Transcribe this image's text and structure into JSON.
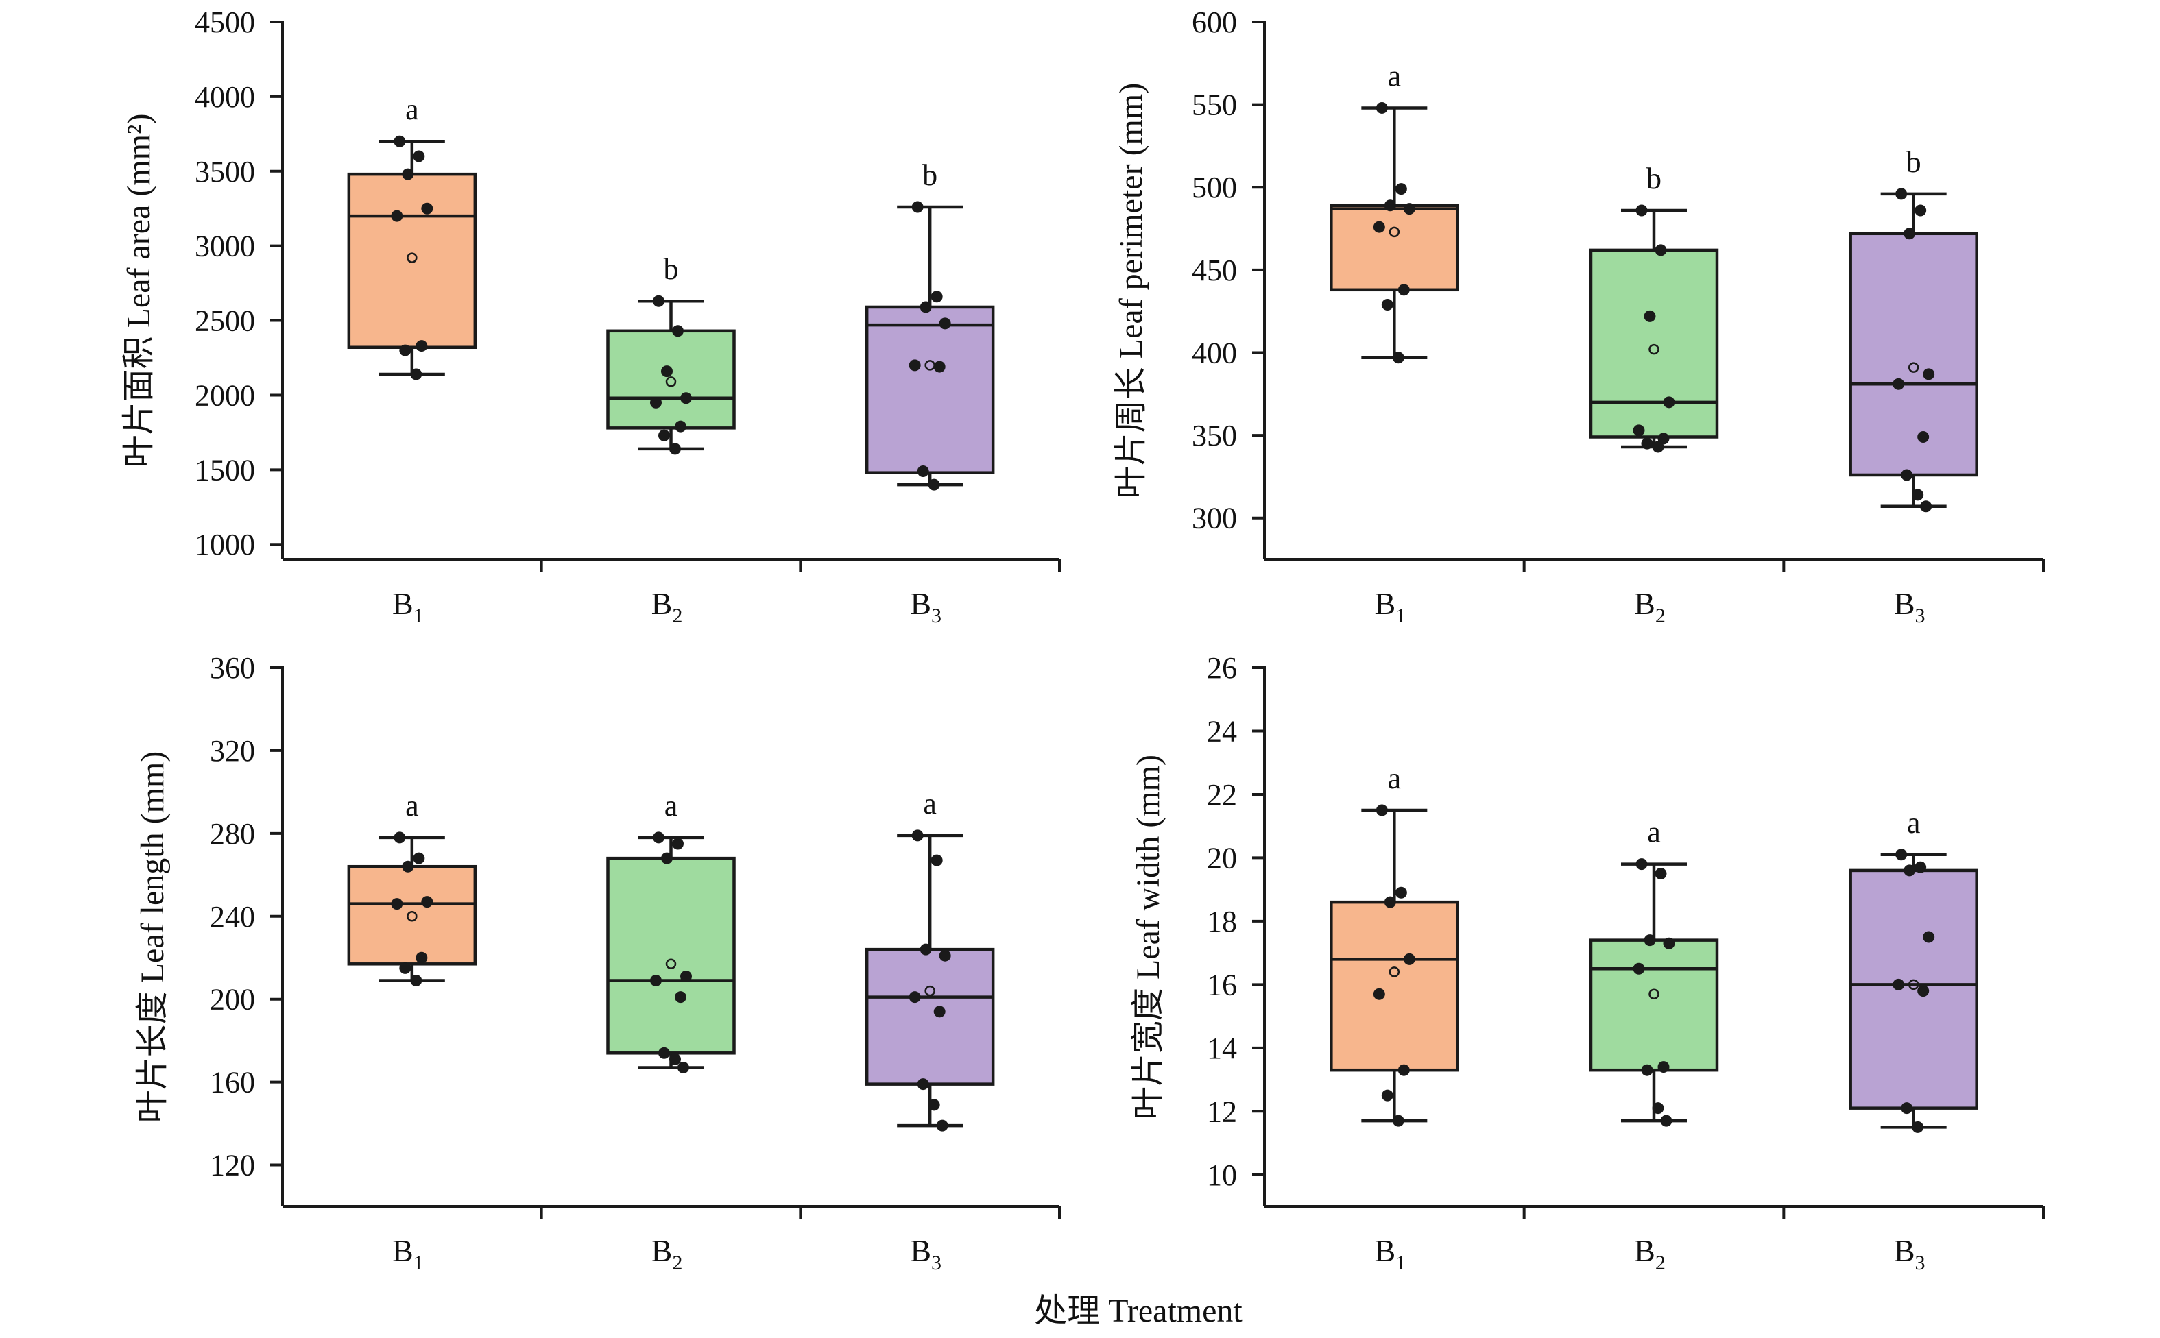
{
  "x_title": "处理 Treatment",
  "colors": {
    "B1": "#f7b68d",
    "B2": "#9fdb9f",
    "B3": "#b9a3d3"
  },
  "chart_data": [
    {
      "type": "box",
      "ylabel": "叶片面积 Leaf area (mm²)",
      "ylim": [
        900,
        4500
      ],
      "yticks": [
        1000,
        1500,
        2000,
        2500,
        3000,
        3500,
        4000,
        4500
      ],
      "groups": [
        {
          "category": "B",
          "sub": "1",
          "min": 2140,
          "q1": 2320,
          "median": 3200,
          "q3": 3480,
          "max": 3700,
          "mean": 2920,
          "letter": "a",
          "points": [
            3700,
            3600,
            3480,
            3250,
            3200,
            2330,
            2300,
            2140
          ]
        },
        {
          "category": "B",
          "sub": "2",
          "min": 1640,
          "q1": 1780,
          "median": 1980,
          "q3": 2430,
          "max": 2630,
          "mean": 2090,
          "letter": "b",
          "points": [
            2630,
            2430,
            2160,
            1980,
            1950,
            1790,
            1730,
            1640
          ]
        },
        {
          "category": "B",
          "sub": "3",
          "min": 1400,
          "q1": 1480,
          "median": 2470,
          "q3": 2590,
          "max": 3260,
          "mean": 2200,
          "letter": "b",
          "points": [
            3260,
            2660,
            2590,
            2480,
            2200,
            2190,
            1490,
            1400
          ]
        }
      ]
    },
    {
      "type": "box",
      "ylabel": "叶片周长 Leaf perimeter (mm)",
      "ylim": [
        275,
        600
      ],
      "yticks": [
        300,
        350,
        400,
        450,
        500,
        550,
        600
      ],
      "groups": [
        {
          "category": "B",
          "sub": "1",
          "min": 397,
          "q1": 438,
          "median": 487,
          "q3": 489,
          "max": 548,
          "mean": 473,
          "letter": "a",
          "points": [
            548,
            499,
            489,
            487,
            476,
            438,
            429,
            397
          ]
        },
        {
          "category": "B",
          "sub": "2",
          "min": 343,
          "q1": 349,
          "median": 370,
          "q3": 462,
          "max": 486,
          "mean": 402,
          "letter": "b",
          "points": [
            486,
            462,
            422,
            370,
            353,
            348,
            345,
            343
          ]
        },
        {
          "category": "B",
          "sub": "3",
          "min": 307,
          "q1": 326,
          "median": 381,
          "q3": 472,
          "max": 496,
          "mean": 391,
          "letter": "b",
          "points": [
            496,
            486,
            472,
            387,
            381,
            349,
            326,
            314,
            307
          ]
        }
      ]
    },
    {
      "type": "box",
      "ylabel": "叶片长度 Leaf length (mm)",
      "ylim": [
        100,
        360
      ],
      "yticks": [
        120,
        160,
        200,
        240,
        280,
        320,
        360
      ],
      "groups": [
        {
          "category": "B",
          "sub": "1",
          "min": 209,
          "q1": 217,
          "median": 246,
          "q3": 264,
          "max": 278,
          "mean": 240,
          "letter": "a",
          "points": [
            278,
            268,
            264,
            247,
            246,
            220,
            215,
            209
          ]
        },
        {
          "category": "B",
          "sub": "2",
          "min": 167,
          "q1": 174,
          "median": 209,
          "q3": 268,
          "max": 278,
          "mean": 217,
          "letter": "a",
          "points": [
            278,
            275,
            268,
            211,
            209,
            201,
            174,
            171,
            167
          ]
        },
        {
          "category": "B",
          "sub": "3",
          "min": 139,
          "q1": 159,
          "median": 201,
          "q3": 224,
          "max": 279,
          "mean": 204,
          "letter": "a",
          "points": [
            279,
            267,
            224,
            221,
            201,
            194,
            159,
            149,
            139
          ]
        }
      ]
    },
    {
      "type": "box",
      "ylabel": "叶片宽度 Leaf width (mm)",
      "ylim": [
        9,
        26
      ],
      "yticks": [
        10,
        12,
        14,
        16,
        18,
        20,
        22,
        24,
        26
      ],
      "groups": [
        {
          "category": "B",
          "sub": "1",
          "min": 11.7,
          "q1": 13.3,
          "median": 16.8,
          "q3": 18.6,
          "max": 21.5,
          "mean": 16.4,
          "letter": "a",
          "points": [
            21.5,
            18.9,
            18.6,
            16.8,
            15.7,
            13.3,
            12.5,
            11.7
          ]
        },
        {
          "category": "B",
          "sub": "2",
          "min": 11.7,
          "q1": 13.3,
          "median": 16.5,
          "q3": 17.4,
          "max": 19.8,
          "mean": 15.7,
          "letter": "a",
          "points": [
            19.8,
            19.5,
            17.4,
            17.3,
            16.5,
            13.4,
            13.3,
            12.1,
            11.7
          ]
        },
        {
          "category": "B",
          "sub": "3",
          "min": 11.5,
          "q1": 12.1,
          "median": 16.0,
          "q3": 19.6,
          "max": 20.1,
          "mean": 16.0,
          "letter": "a",
          "points": [
            20.1,
            19.7,
            19.6,
            17.5,
            16.0,
            15.8,
            12.1,
            11.5
          ]
        }
      ]
    }
  ]
}
